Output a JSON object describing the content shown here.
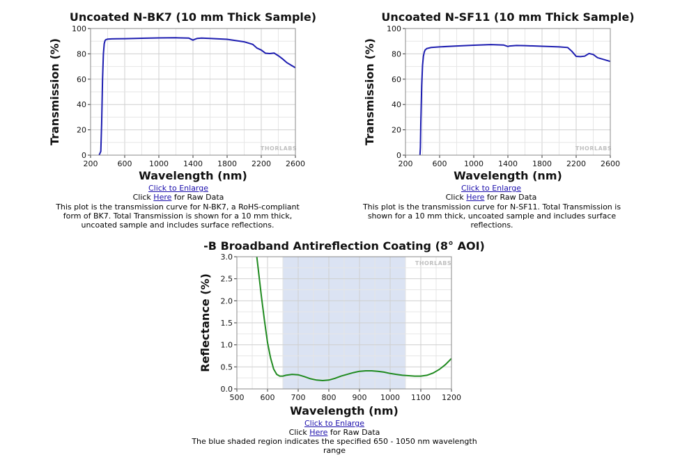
{
  "charts": [
    {
      "title": "Uncoated N-BK7 (10 mm Thick Sample)",
      "enlarge_link": "Click to Enlarge",
      "raw_prefix": "Click ",
      "raw_link": "Here",
      "raw_suffix": " for Raw Data",
      "description": "This plot is the transmission curve for N-BK7, a RoHS-compliant form of BK7. Total Transmission is shown for a 10 mm thick, uncoated sample and includes surface reflections."
    },
    {
      "title": "Uncoated N-SF11 (10 mm Thick Sample)",
      "enlarge_link": "Click to Enlarge",
      "raw_prefix": "Click ",
      "raw_link": "Here",
      "raw_suffix": " for Raw Data",
      "description": "This plot is the transmission curve for N-SF11. Total Transmission is shown for a 10 mm thick, uncoated sample and includes surface reflections."
    },
    {
      "title": "-B Broadband Antireflection Coating (8° AOI)",
      "enlarge_link": "Click to Enlarge",
      "raw_prefix": "Click ",
      "raw_link": "Here",
      "raw_suffix": " for Raw Data",
      "description": "The blue shaded region indicates the specified 650 - 1050 nm wavelength range"
    }
  ],
  "watermark": "THORLABS",
  "chart_data": [
    {
      "type": "line",
      "title": "Uncoated N-BK7 (10 mm Thick Sample)",
      "xlabel": "Wavelength (nm)",
      "ylabel": "Transmission (%)",
      "xlim": [
        200,
        2600
      ],
      "ylim": [
        0,
        100
      ],
      "xticks": [
        "200",
        "600",
        "1000",
        "1400",
        "1800",
        "2200",
        "2600"
      ],
      "yticks": [
        "0",
        "20",
        "40",
        "60",
        "80",
        "100"
      ],
      "grid": true,
      "line_color": "#1c1cb0",
      "series": [
        {
          "x": [
            300,
            320,
            330,
            340,
            350,
            360,
            370,
            380,
            400,
            450,
            500,
            600,
            800,
            1000,
            1200,
            1350,
            1400,
            1420,
            1450,
            1500,
            1600,
            1800,
            2000,
            2100,
            2150,
            2200,
            2250,
            2300,
            2350,
            2400,
            2450,
            2500,
            2600
          ],
          "y": [
            0,
            3,
            25,
            60,
            80,
            88,
            90.5,
            91.2,
            91.6,
            91.8,
            91.9,
            92,
            92.3,
            92.6,
            92.7,
            92.5,
            90.8,
            91.5,
            92.2,
            92.4,
            92.2,
            91.5,
            89.5,
            87.5,
            84.5,
            83,
            80.5,
            80.2,
            80.6,
            78.5,
            76,
            73,
            69
          ]
        }
      ]
    },
    {
      "type": "line",
      "title": "Uncoated N-SF11 (10 mm Thick Sample)",
      "xlabel": "Wavelength (nm)",
      "ylabel": "Transmission (%)",
      "xlim": [
        200,
        2600
      ],
      "ylim": [
        0,
        100
      ],
      "xticks": [
        "200",
        "600",
        "1000",
        "1400",
        "1800",
        "2200",
        "2600"
      ],
      "yticks": [
        "0",
        "20",
        "40",
        "60",
        "80",
        "100"
      ],
      "grid": true,
      "line_color": "#1c1cb0",
      "series": [
        {
          "x": [
            370,
            375,
            380,
            390,
            400,
            410,
            420,
            430,
            450,
            500,
            600,
            800,
            1000,
            1200,
            1350,
            1400,
            1420,
            1500,
            1600,
            1800,
            2000,
            2100,
            2150,
            2200,
            2250,
            2300,
            2350,
            2400,
            2450,
            2500,
            2600
          ],
          "y": [
            0,
            6,
            25,
            55,
            71,
            78,
            81.5,
            83,
            84.2,
            85,
            85.5,
            86.2,
            86.8,
            87.3,
            87,
            85.8,
            86.2,
            86.6,
            86.5,
            86,
            85.5,
            85,
            82,
            78,
            77.8,
            78.2,
            80.3,
            79.5,
            77,
            76,
            74
          ]
        }
      ]
    },
    {
      "type": "line",
      "title": "-B Broadband Antireflection Coating (8° AOI)",
      "xlabel": "Wavelength (nm)",
      "ylabel": "Reflectance (%)",
      "xlim": [
        500,
        1200
      ],
      "ylim": [
        0,
        3
      ],
      "xticks": [
        "500",
        "600",
        "700",
        "800",
        "900",
        "1000",
        "1100",
        "1200"
      ],
      "yticks": [
        "0.0",
        "0.5",
        "1.0",
        "1.5",
        "2.0",
        "2.5",
        "3.0"
      ],
      "grid": true,
      "line_color": "#1f8a1f",
      "shaded_region": {
        "x": [
          650,
          1050
        ],
        "color": "#dbe3f3"
      },
      "series": [
        {
          "x": [
            565,
            570,
            580,
            590,
            600,
            610,
            620,
            630,
            640,
            650,
            660,
            680,
            700,
            720,
            740,
            760,
            780,
            800,
            820,
            840,
            860,
            880,
            900,
            920,
            940,
            960,
            980,
            1000,
            1020,
            1040,
            1060,
            1080,
            1100,
            1120,
            1140,
            1160,
            1180,
            1200
          ],
          "y": [
            3.0,
            2.7,
            2.1,
            1.55,
            1.05,
            0.7,
            0.45,
            0.33,
            0.29,
            0.29,
            0.31,
            0.33,
            0.32,
            0.28,
            0.23,
            0.2,
            0.19,
            0.2,
            0.24,
            0.29,
            0.33,
            0.37,
            0.4,
            0.41,
            0.41,
            0.4,
            0.38,
            0.35,
            0.33,
            0.31,
            0.3,
            0.29,
            0.29,
            0.31,
            0.36,
            0.44,
            0.55,
            0.69
          ]
        }
      ]
    }
  ]
}
